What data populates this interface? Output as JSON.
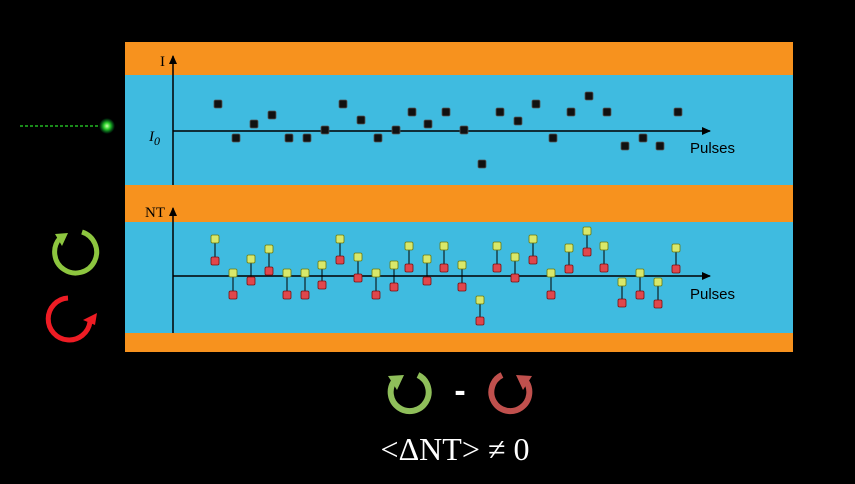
{
  "top_panel": {
    "y_label": "I",
    "baseline_label": "I",
    "baseline_subscript": "0",
    "x_label": "Pulses"
  },
  "bottom_panel": {
    "y_label": "NT",
    "x_label": "Pulses"
  },
  "footer": {
    "minus": "-",
    "formula": "<ΔNT> ≠ 0"
  }
}
